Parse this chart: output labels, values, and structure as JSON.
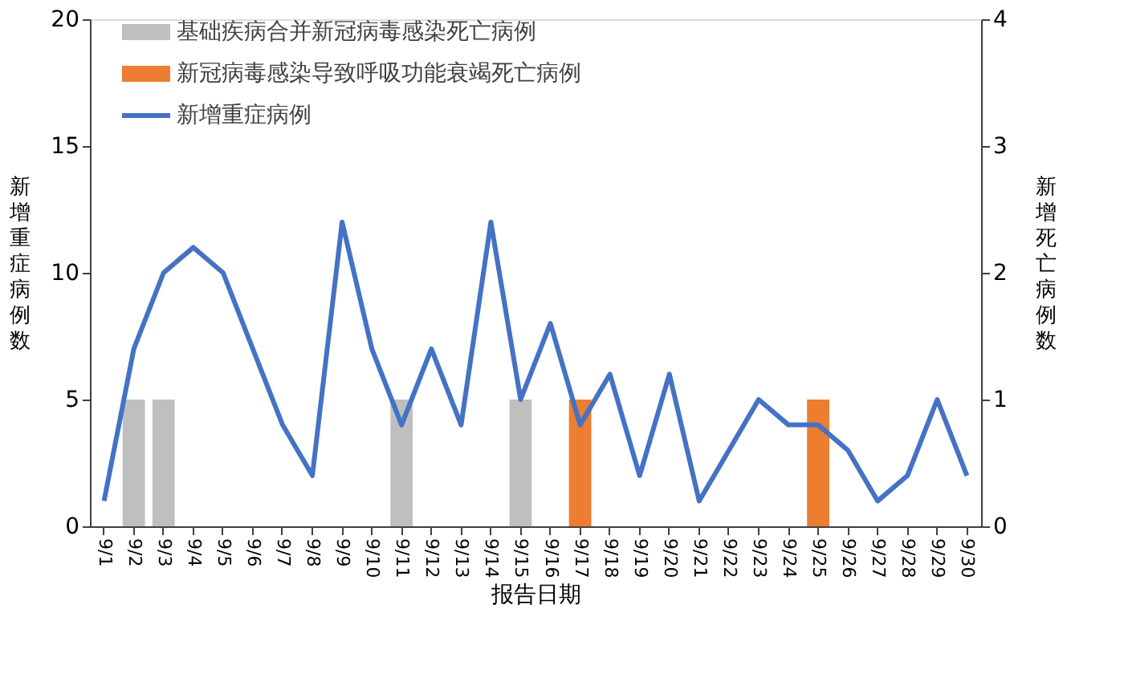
{
  "chart_data": {
    "type": "bar",
    "xlabel": "报告日期",
    "ylabel": "新增重症病例数",
    "y2label": "新增死亡病例数",
    "categories": [
      "9/1",
      "9/2",
      "9/3",
      "9/4",
      "9/5",
      "9/6",
      "9/7",
      "9/8",
      "9/9",
      "9/10",
      "9/11",
      "9/12",
      "9/13",
      "9/14",
      "9/15",
      "9/16",
      "9/17",
      "9/18",
      "9/19",
      "9/20",
      "9/21",
      "9/22",
      "9/23",
      "9/24",
      "9/25",
      "9/26",
      "9/27",
      "9/28",
      "9/29",
      "9/30"
    ],
    "series": [
      {
        "name": "基础疾病合并新冠病毒感染死亡病例",
        "axis": "y2",
        "color": "#bfbfbf",
        "values": [
          null,
          1,
          1,
          null,
          null,
          null,
          null,
          null,
          null,
          null,
          1,
          null,
          null,
          null,
          1,
          null,
          null,
          null,
          null,
          null,
          null,
          null,
          null,
          null,
          null,
          null,
          null,
          null,
          null,
          null
        ]
      },
      {
        "name": "新冠病毒感染导致呼吸功能衰竭死亡病例",
        "axis": "y2",
        "color": "#ed7d31",
        "values": [
          null,
          null,
          null,
          null,
          null,
          null,
          null,
          null,
          null,
          null,
          null,
          null,
          null,
          null,
          null,
          null,
          1,
          null,
          null,
          null,
          null,
          null,
          null,
          null,
          1,
          null,
          null,
          null,
          null,
          null
        ]
      },
      {
        "name": "新增重症病例",
        "type": "line",
        "axis": "y",
        "color": "#4472c4",
        "values": [
          1,
          7,
          10,
          11,
          10,
          7,
          4,
          2,
          12,
          7,
          4,
          7,
          4,
          12,
          5,
          8,
          4,
          6,
          2,
          6,
          1,
          3,
          5,
          4,
          4,
          3,
          1,
          2,
          5,
          2
        ]
      }
    ],
    "ylim": [
      0,
      20
    ],
    "yticks": [
      0,
      5,
      10,
      15,
      20
    ],
    "y2lim": [
      0,
      4
    ],
    "y2ticks": [
      0,
      1,
      2,
      3,
      4
    ],
    "grid": false,
    "legend": "top left",
    "marker": "none",
    "line_style": "solid"
  }
}
